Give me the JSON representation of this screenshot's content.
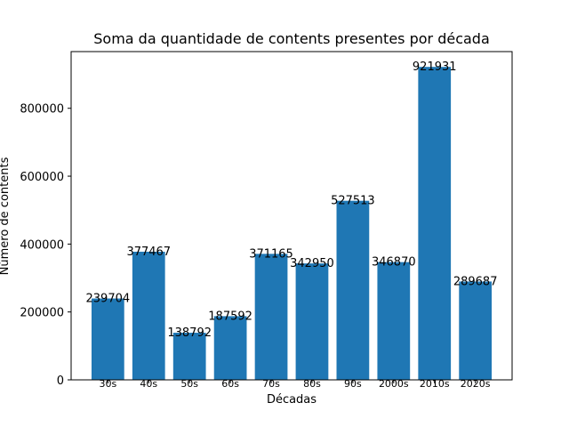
{
  "chart_data": {
    "type": "bar",
    "title": "Soma da quantidade de contents presentes por década",
    "xlabel": "Décadas",
    "ylabel": "Número de contents",
    "categories": [
      "30s",
      "40s",
      "50s",
      "60s",
      "70s",
      "80s",
      "90s",
      "2000s",
      "2010s",
      "2020s"
    ],
    "values": [
      239704,
      377467,
      138792,
      187592,
      371165,
      342950,
      527513,
      346870,
      921931,
      289687
    ],
    "ylim": [
      0,
      967000
    ],
    "yticks": [
      0,
      200000,
      400000,
      600000,
      800000
    ],
    "ytick_labels": [
      "0",
      "200000",
      "400000",
      "600000",
      "800000"
    ],
    "bar_color": "#1f77b4",
    "grid": false,
    "legend": "none"
  }
}
